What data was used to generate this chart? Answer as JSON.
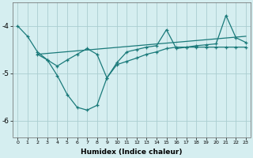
{
  "xlabel": "Humidex (Indice chaleur)",
  "bg_color": "#d5eef0",
  "grid_color": "#aacdd0",
  "line_color": "#1a7a7a",
  "line1_x": [
    0,
    1,
    2,
    3,
    4,
    5,
    6,
    7,
    8,
    9,
    10,
    11,
    12,
    13,
    14,
    15,
    16,
    17,
    18,
    19,
    20,
    21,
    22,
    23
  ],
  "line1_y": [
    -4.0,
    -4.22,
    -4.55,
    -4.72,
    -5.05,
    -5.45,
    -5.72,
    -5.78,
    -5.68,
    -5.1,
    -4.82,
    -4.75,
    -4.68,
    -4.6,
    -4.55,
    -4.48,
    -4.45,
    -4.45,
    -4.45,
    -4.45,
    -4.45,
    -4.45,
    -4.45,
    -4.45
  ],
  "line2_x": [
    2,
    3,
    4,
    5,
    6,
    7,
    8,
    9,
    10,
    11,
    12,
    13,
    14,
    15,
    16,
    17,
    18,
    19,
    20,
    21,
    22,
    23
  ],
  "line2_y": [
    -4.6,
    -4.72,
    -4.85,
    -4.72,
    -4.6,
    -4.48,
    -4.6,
    -5.1,
    -4.78,
    -4.55,
    -4.5,
    -4.45,
    -4.42,
    -4.08,
    -4.48,
    -4.45,
    -4.42,
    -4.4,
    -4.38,
    -3.78,
    -4.25,
    -4.35
  ],
  "line3_x": [
    2,
    23
  ],
  "line3_y": [
    -4.6,
    -4.22
  ],
  "ylim": [
    -6.35,
    -3.5
  ],
  "xlim": [
    -0.5,
    23.5
  ],
  "yticks": [
    -6,
    -5,
    -4
  ],
  "xticks": [
    0,
    1,
    2,
    3,
    4,
    5,
    6,
    7,
    8,
    9,
    10,
    11,
    12,
    13,
    14,
    15,
    16,
    17,
    18,
    19,
    20,
    21,
    22,
    23
  ]
}
